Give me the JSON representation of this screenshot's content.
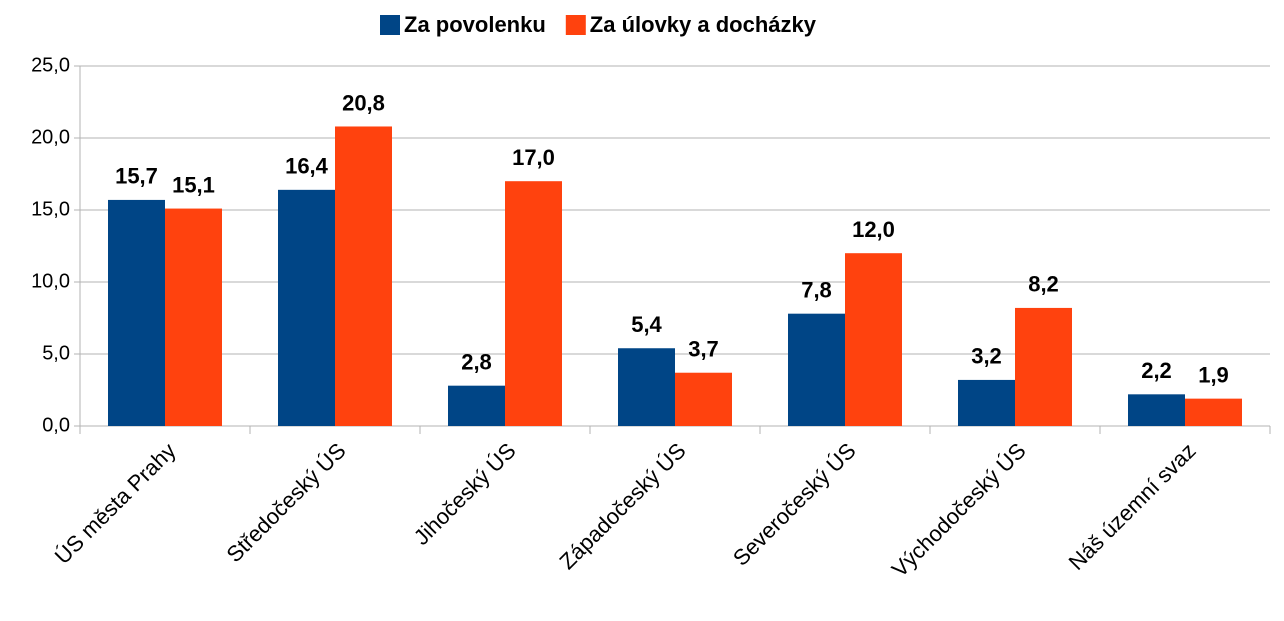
{
  "chart_data": {
    "type": "bar",
    "categories": [
      "ÚS města Prahy",
      "Středočeský ÚS",
      "Jihočeský ÚS",
      "Západočeský ÚS",
      "Severočeský ÚS",
      "Východočeský ÚS",
      "Náš územní svaz"
    ],
    "series": [
      {
        "name": "Za povolenku",
        "color": "#004586",
        "values": [
          15.7,
          16.4,
          2.8,
          5.4,
          7.8,
          3.2,
          2.2
        ],
        "value_labels": [
          "15,7",
          "16,4",
          "2,8",
          "5,4",
          "7,8",
          "3,2",
          "2,2"
        ]
      },
      {
        "name": "Za úlovky a docházky",
        "color": "#ff420e",
        "values": [
          15.1,
          20.8,
          17.0,
          3.7,
          12.0,
          8.2,
          1.9
        ],
        "value_labels": [
          "15,1",
          "20,8",
          "17,0",
          "3,7",
          "12,0",
          "8,2",
          "1,9"
        ]
      }
    ],
    "ylim": [
      0,
      25
    ],
    "yticks": [
      {
        "value": 0,
        "label": "0,0"
      },
      {
        "value": 5,
        "label": "5,0"
      },
      {
        "value": 10,
        "label": "10,0"
      },
      {
        "value": 15,
        "label": "15,0"
      },
      {
        "value": 20,
        "label": "20,0"
      },
      {
        "value": 25,
        "label": "25,0"
      }
    ],
    "grid": true,
    "legend": "top"
  }
}
